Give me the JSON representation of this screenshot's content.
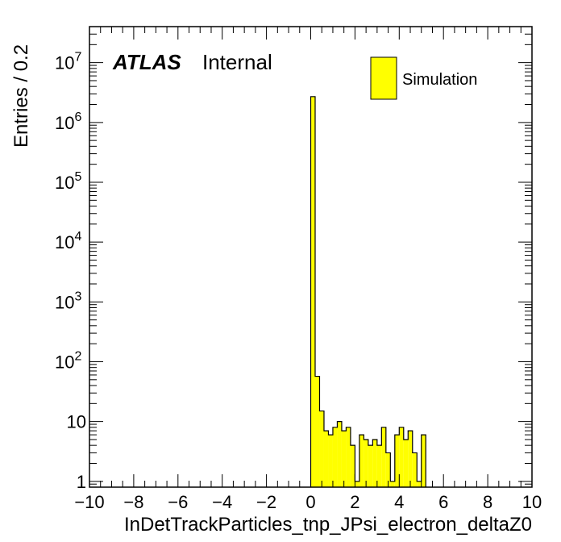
{
  "chart_data": {
    "type": "bar",
    "xlabel": "InDetTrackParticles_tnp_JPsi_electron_deltaZ0",
    "ylabel": "Entries / 0.2",
    "xlim": [
      -10,
      10
    ],
    "ylim": [
      0.8,
      40000000
    ],
    "y_scale": "log",
    "x_ticks": [
      "−10",
      "−8",
      "−6",
      "−4",
      "−2",
      "0",
      "2",
      "4",
      "6",
      "8",
      "10"
    ],
    "y_ticks": [
      {
        "value": 1,
        "base": "1",
        "exp": ""
      },
      {
        "value": 10,
        "base": "10",
        "exp": ""
      },
      {
        "value": 100,
        "base": "10",
        "exp": "2"
      },
      {
        "value": 1000,
        "base": "10",
        "exp": "3"
      },
      {
        "value": 10000,
        "base": "10",
        "exp": "4"
      },
      {
        "value": 100000,
        "base": "10",
        "exp": "5"
      },
      {
        "value": 1000000,
        "base": "10",
        "exp": "6"
      },
      {
        "value": 10000000,
        "base": "10",
        "exp": "7"
      }
    ],
    "bin_width": 0.2,
    "bin_edges_start": 0.0,
    "values": [
      2700000,
      57,
      15,
      7,
      6,
      8,
      10,
      7,
      8,
      4,
      1,
      6,
      5,
      4,
      5,
      4,
      8,
      3,
      1,
      6,
      8,
      5,
      7,
      3,
      1,
      6
    ],
    "legend": [
      {
        "name": "Simulation",
        "color": "#ffff00"
      }
    ],
    "legend_position": "top-right",
    "fill_color": "#ffff00",
    "line_color": "#000000",
    "annotations": {
      "atlas": "ATLAS",
      "status": "Internal"
    }
  }
}
